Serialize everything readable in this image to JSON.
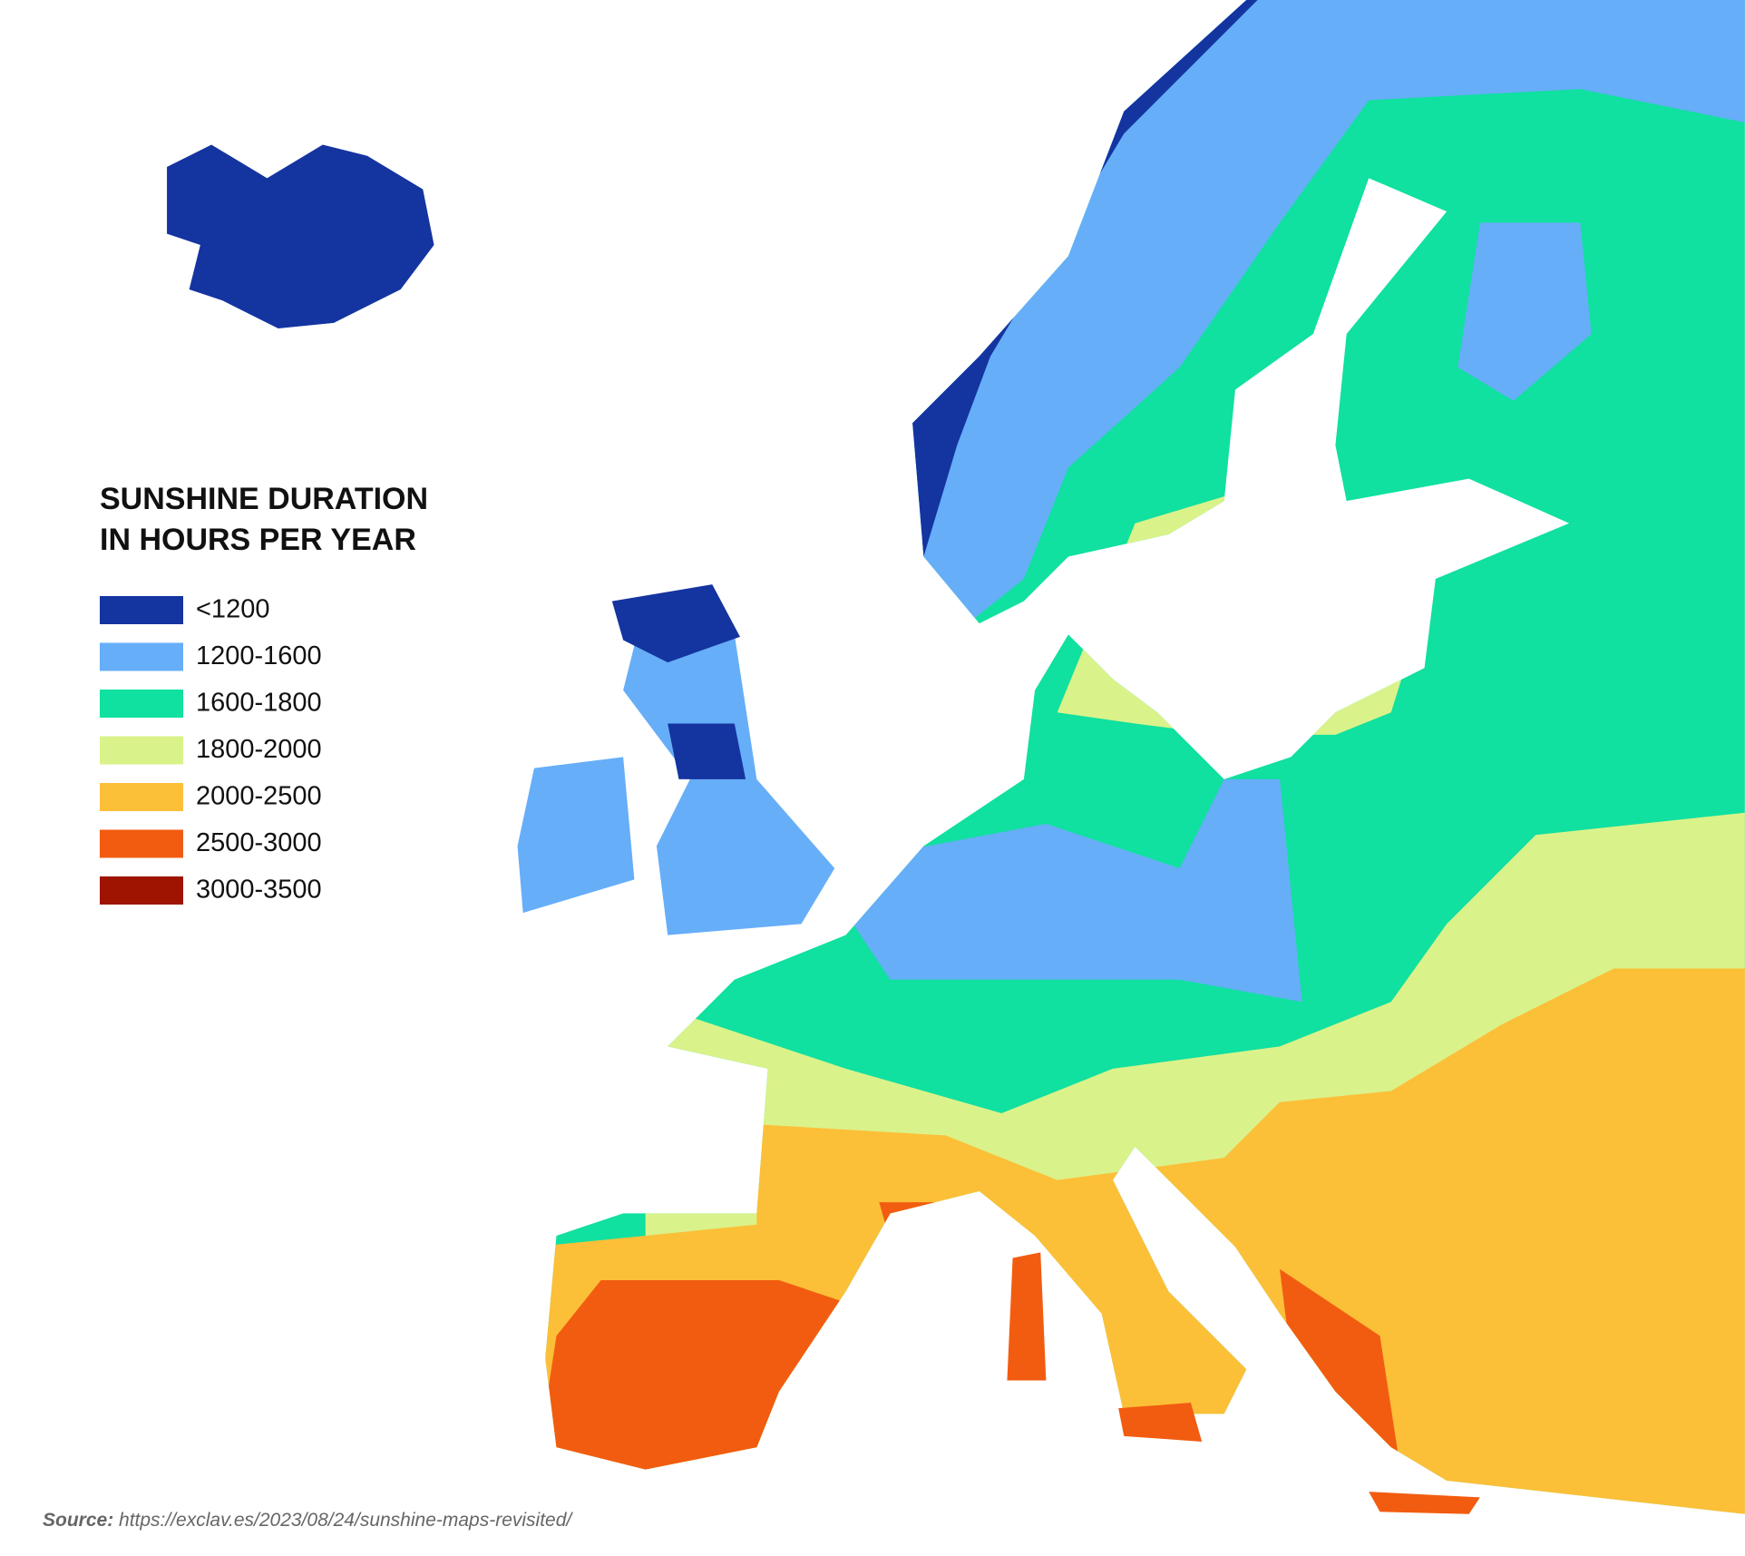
{
  "title": [
    "SUNSHINE DURATION",
    "IN HOURS PER YEAR"
  ],
  "legend": [
    {
      "label": "<1200",
      "color": "#1434a0"
    },
    {
      "label": "1200-1600",
      "color": "#66aef8"
    },
    {
      "label": "1600-1800",
      "color": "#10e0a0"
    },
    {
      "label": "1800-2000",
      "color": "#daf28a"
    },
    {
      "label": "2000-2500",
      "color": "#fcbf38"
    },
    {
      "label": "2500-3000",
      "color": "#f25c10"
    },
    {
      "label": "3000-3500",
      "color": "#9e1400"
    }
  ],
  "source": {
    "label": "Source:",
    "text": "https://exclav.es/2023/08/24/sunshine-maps-revisited/"
  }
}
